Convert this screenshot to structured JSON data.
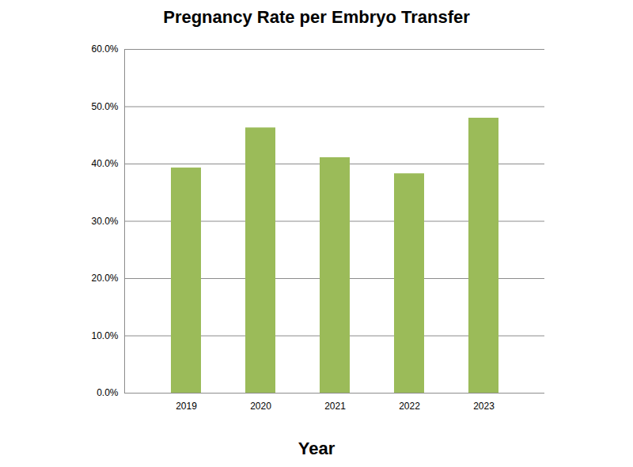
{
  "chart_data": {
    "type": "bar",
    "title": "Pregnancy Rate per Embryo Transfer",
    "x_label": "Year",
    "categories": [
      "2019",
      "2020",
      "2021",
      "2022",
      "2023"
    ],
    "values": [
      39.3,
      46.3,
      41.1,
      38.3,
      48.0
    ],
    "color": "#9bbb59",
    "ylim": [
      0,
      60
    ],
    "yticks": [
      {
        "value": 0,
        "label": "0.0%"
      },
      {
        "value": 10,
        "label": "10.0%"
      },
      {
        "value": 20,
        "label": "20.0%"
      },
      {
        "value": 30,
        "label": "30.0%"
      },
      {
        "value": 40,
        "label": "40.0%"
      },
      {
        "value": 50,
        "label": "50.0%"
      },
      {
        "value": 60,
        "label": "60.0%"
      }
    ],
    "grid": true
  }
}
